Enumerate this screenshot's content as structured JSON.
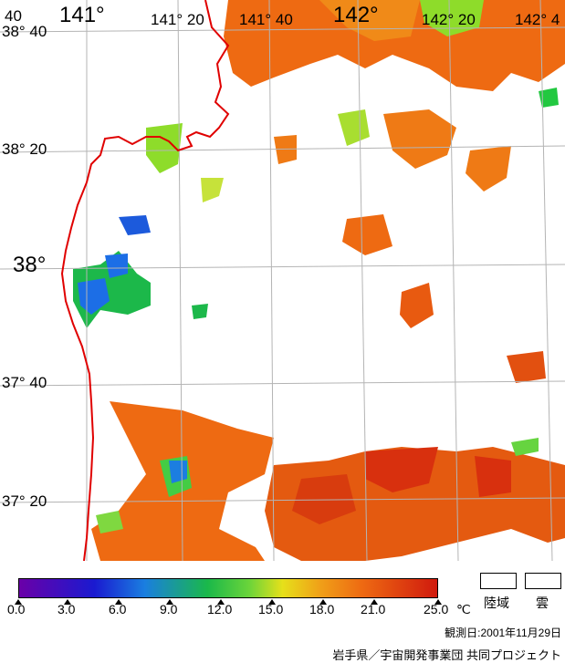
{
  "map": {
    "lat_labels": [
      "38° 40",
      "38° 20",
      "38°",
      "37° 40",
      "37° 20"
    ],
    "lon_labels": [
      "141°",
      "141° 20",
      "141° 40",
      "142°",
      "142° 20",
      "142° 4"
    ],
    "corner_fragment": "40"
  },
  "legend": {
    "ticks": [
      "0.0",
      "3.0",
      "6.0",
      "9.0",
      "12.0",
      "15.0",
      "18.0",
      "21.0",
      "25.0"
    ],
    "unit": "℃",
    "land_label": "陸域",
    "cloud_label": "雲"
  },
  "footer": {
    "observation_date": "観測日:2001年11月29日",
    "credit": "岩手県／宇宙開発事業団  共同プロジェクト"
  }
}
